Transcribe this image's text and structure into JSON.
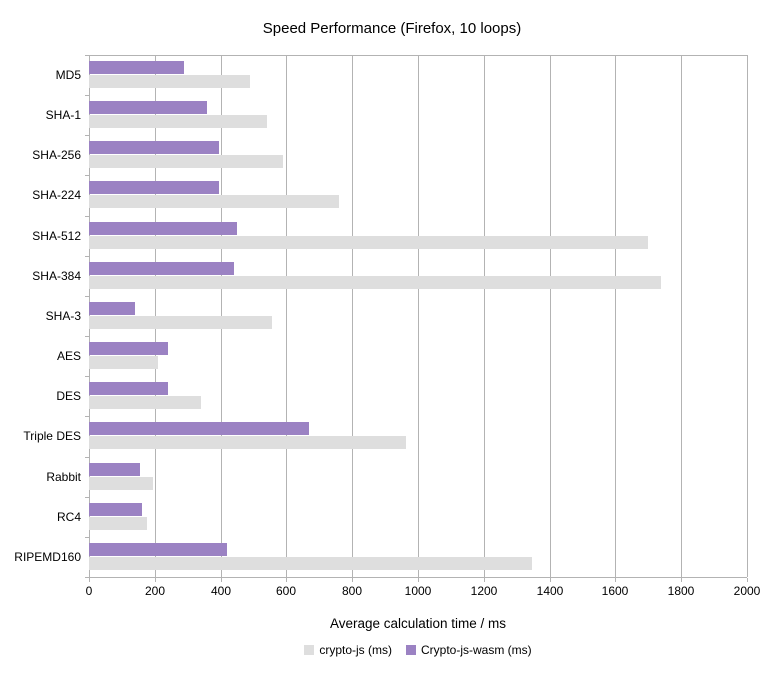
{
  "chart_data": {
    "type": "bar",
    "orientation": "horizontal",
    "title": "Speed Performance (Firefox, 10 loops)",
    "xlabel": "Average calculation time / ms",
    "ylabel": "",
    "xlim": [
      0,
      2000
    ],
    "xtick_step": 200,
    "grid": true,
    "legend_position": "bottom",
    "categories": [
      "MD5",
      "SHA-1",
      "SHA-256",
      "SHA-224",
      "SHA-512",
      "SHA-384",
      "SHA-3",
      "AES",
      "DES",
      "Triple DES",
      "Rabbit",
      "RC4",
      "RIPEMD160"
    ],
    "series": [
      {
        "name": "crypto-js (ms)",
        "color": "#dedede",
        "values": [
          490,
          540,
          590,
          760,
          1700,
          1740,
          555,
          210,
          340,
          965,
          195,
          175,
          1345
        ]
      },
      {
        "name": "Crypto-js-wasm (ms)",
        "color": "#9b82c3",
        "values": [
          290,
          360,
          395,
          395,
          450,
          440,
          140,
          240,
          240,
          670,
          155,
          160,
          420
        ]
      }
    ],
    "colors": {
      "gridline": "#b3b3b3",
      "axis": "#b3b3b3",
      "text": "#000000",
      "background": "#ffffff"
    }
  }
}
